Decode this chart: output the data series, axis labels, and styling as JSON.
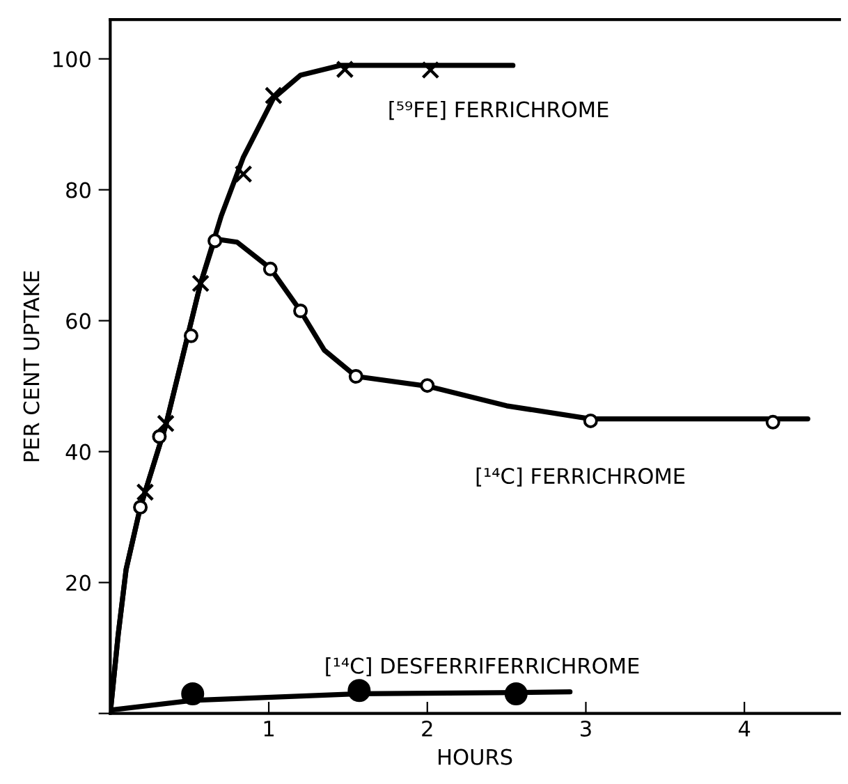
{
  "chart_data": {
    "type": "line",
    "xlabel": "HOURS",
    "ylabel": "PER CENT UPTAKE",
    "xlim": [
      0,
      4.6
    ],
    "ylim": [
      0,
      106
    ],
    "xticks": [
      {
        "value": 0,
        "label": null
      },
      1,
      2,
      3,
      4
    ],
    "yticks": [
      {
        "value": 0,
        "label": null
      },
      20,
      40,
      60,
      80,
      100
    ],
    "grid": false,
    "legend": false,
    "line_style": "solid",
    "series": [
      {
        "color": "#000000",
        "marker": "none",
        "x": [
          0,
          0.05,
          0.1,
          0.19,
          0.35,
          0.57,
          0.7,
          0.84,
          1.03,
          1.2,
          1.45,
          2.02,
          2.54
        ],
        "values": [
          0,
          12,
          22,
          31.5,
          44,
          65.7,
          76,
          85,
          94,
          97.5,
          99,
          99,
          99
        ]
      },
      {
        "type": "scatter",
        "name": "[⁵⁹FE] FERRICHROME",
        "color": "#000000",
        "marker": "cross",
        "x": [
          0.22,
          0.35,
          0.57,
          0.84,
          1.03,
          1.48,
          2.02
        ],
        "values": [
          33.8,
          44.3,
          65.7,
          82.4,
          94.4,
          98.4,
          98.3
        ]
      },
      {
        "color": "#000000",
        "marker": "none",
        "x": [
          0,
          0.05,
          0.1,
          0.19,
          0.35,
          0.57,
          0.66,
          0.8,
          1.01,
          1.2,
          1.35,
          1.55,
          2.0,
          2.5,
          3.03,
          4.18,
          4.4
        ],
        "values": [
          0,
          12,
          22,
          31.5,
          44,
          65.7,
          72.5,
          72,
          68,
          61.5,
          55.5,
          51.5,
          50,
          47,
          45,
          45,
          45
        ]
      },
      {
        "type": "scatter",
        "name": "[¹⁴C] FERRICHROME",
        "color": "#ffffff",
        "marker": "circle",
        "x": [
          0.19,
          0.31,
          0.51,
          0.66,
          1.01,
          1.2,
          1.55,
          2.0,
          3.03,
          4.18
        ],
        "values": [
          31.5,
          42.3,
          57.7,
          72.2,
          67.9,
          61.5,
          51.5,
          50.1,
          44.7,
          44.5
        ]
      },
      {
        "color": "#000000",
        "marker": "none",
        "x": [
          0,
          0.52,
          1.57,
          2.56,
          2.9
        ],
        "values": [
          0.5,
          2,
          3,
          3.2,
          3.3
        ]
      },
      {
        "type": "scatter",
        "name": "[¹⁴C] DESFERRIFERRICHROME",
        "color": "#000000",
        "marker": "circle",
        "x": [
          0.52,
          1.57,
          2.56
        ],
        "values": [
          3,
          3.5,
          3
        ]
      }
    ]
  }
}
